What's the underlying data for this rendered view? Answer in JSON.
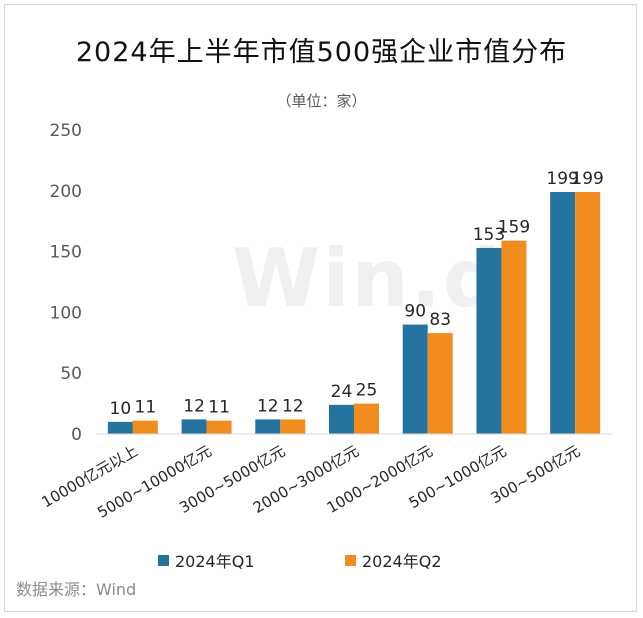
{
  "title": "2024年上半年市值500强企业市值分布",
  "subtitle": "（单位：家）",
  "watermark": "Win.d",
  "source": "数据来源：Wind",
  "colors": {
    "q1": "#2574a0",
    "q2": "#f28c1e"
  },
  "chart_data": {
    "type": "bar",
    "title": "2024年上半年市值500强企业市值分布",
    "ylabel": "家",
    "ylim": [
      0,
      250
    ],
    "yticks": [
      0,
      50,
      100,
      150,
      200,
      250
    ],
    "grid": false,
    "legend_position": "bottom",
    "categories": [
      "10000亿元以上",
      "5000~10000亿元",
      "3000~5000亿元",
      "2000~3000亿元",
      "1000~2000亿元",
      "500~1000亿元",
      "300~500亿元"
    ],
    "series": [
      {
        "name": "2024年Q1",
        "values": [
          10,
          12,
          12,
          24,
          90,
          153,
          199
        ]
      },
      {
        "name": "2024年Q2",
        "values": [
          11,
          11,
          12,
          25,
          83,
          159,
          199
        ]
      }
    ]
  }
}
